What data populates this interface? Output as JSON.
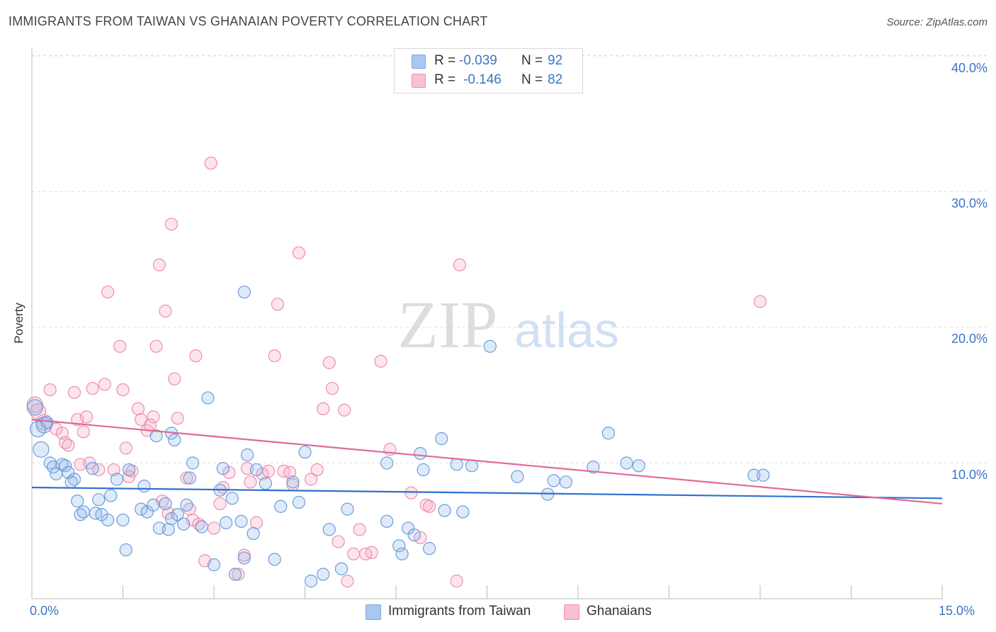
{
  "title": "IMMIGRANTS FROM TAIWAN VS GHANAIAN POVERTY CORRELATION CHART",
  "source": "Source: ZipAtlas.com",
  "watermark": {
    "zip": "ZIP",
    "atlas": "atlas"
  },
  "legend_top": {
    "rows": [
      {
        "r_label": "R =",
        "r_value": "-0.039",
        "n_label": "N =",
        "n_value": "92",
        "color": "#a8c8f0",
        "border": "#7aa7df"
      },
      {
        "r_label": "R =",
        "r_value": "-0.146",
        "n_label": "N =",
        "n_value": "82",
        "color": "#f8c0d2",
        "border": "#ec92b0"
      }
    ]
  },
  "legend_bottom": [
    {
      "label": "Immigrants from Taiwan",
      "color": "#a8c8f0",
      "border": "#7aa7df"
    },
    {
      "label": "Ghanaians",
      "color": "#f8c0d2",
      "border": "#ec92b0"
    }
  ],
  "colors": {
    "blue_fill": "rgba(140,180,235,0.28)",
    "blue_stroke": "#6b9ddb",
    "blue_line": "#2e6fd1",
    "pink_fill": "rgba(245,160,190,0.28)",
    "pink_stroke": "#ec8fb0",
    "pink_line": "#e06a96",
    "tick_text": "#3a75c4",
    "grid": "#e2e2e2"
  },
  "chart_data": {
    "type": "scatter",
    "title": "IMMIGRANTS FROM TAIWAN VS GHANAIAN POVERTY CORRELATION CHART",
    "xlabel": "",
    "ylabel": "Poverty",
    "xlim": [
      0,
      15
    ],
    "ylim": [
      0,
      40
    ],
    "x_tick_labels": [
      "0.0%",
      "15.0%"
    ],
    "y_ticks": [
      10,
      20,
      30,
      40
    ],
    "y_tick_labels": [
      "10.0%",
      "20.0%",
      "30.0%",
      "40.0%"
    ],
    "grid": true,
    "legend_position": "top-center",
    "series": [
      {
        "name": "Immigrants from Taiwan",
        "R": -0.039,
        "N": 92,
        "trend": {
          "x": [
            0,
            15
          ],
          "y": [
            8.2,
            7.4
          ]
        },
        "points": [
          [
            0.1,
            12.5
          ],
          [
            0.15,
            11.0
          ],
          [
            0.2,
            12.8
          ],
          [
            0.25,
            13.0
          ],
          [
            0.3,
            10.0
          ],
          [
            0.35,
            9.7
          ],
          [
            0.4,
            9.2
          ],
          [
            0.5,
            9.9
          ],
          [
            0.55,
            9.8
          ],
          [
            0.6,
            9.3
          ],
          [
            0.7,
            8.8
          ],
          [
            0.75,
            7.2
          ],
          [
            0.8,
            6.2
          ],
          [
            0.85,
            6.4
          ],
          [
            1.0,
            9.6
          ],
          [
            1.05,
            6.3
          ],
          [
            1.1,
            7.3
          ],
          [
            1.15,
            6.2
          ],
          [
            1.3,
            7.6
          ],
          [
            1.4,
            8.8
          ],
          [
            1.5,
            5.8
          ],
          [
            1.55,
            3.6
          ],
          [
            1.6,
            9.5
          ],
          [
            1.8,
            6.6
          ],
          [
            1.85,
            8.3
          ],
          [
            1.9,
            6.4
          ],
          [
            2.0,
            6.9
          ],
          [
            2.05,
            12.0
          ],
          [
            2.1,
            5.2
          ],
          [
            2.2,
            7.0
          ],
          [
            2.3,
            5.9
          ],
          [
            2.3,
            12.2
          ],
          [
            2.35,
            11.7
          ],
          [
            2.4,
            6.2
          ],
          [
            2.5,
            5.5
          ],
          [
            2.55,
            6.9
          ],
          [
            2.6,
            8.9
          ],
          [
            2.65,
            10.0
          ],
          [
            2.8,
            5.3
          ],
          [
            2.9,
            14.8
          ],
          [
            3.0,
            2.5
          ],
          [
            3.1,
            8.0
          ],
          [
            3.15,
            9.6
          ],
          [
            3.2,
            5.6
          ],
          [
            3.3,
            7.4
          ],
          [
            3.35,
            1.8
          ],
          [
            3.45,
            5.7
          ],
          [
            3.5,
            3.0
          ],
          [
            3.55,
            10.6
          ],
          [
            3.65,
            4.8
          ],
          [
            3.7,
            9.5
          ],
          [
            3.85,
            8.5
          ],
          [
            4.0,
            2.9
          ],
          [
            4.1,
            6.8
          ],
          [
            4.3,
            8.6
          ],
          [
            4.4,
            7.1
          ],
          [
            4.5,
            10.8
          ],
          [
            4.6,
            1.3
          ],
          [
            4.8,
            1.8
          ],
          [
            4.9,
            5.1
          ],
          [
            5.1,
            2.2
          ],
          [
            5.2,
            6.6
          ],
          [
            5.85,
            10.0
          ],
          [
            5.85,
            5.7
          ],
          [
            6.05,
            3.9
          ],
          [
            6.1,
            3.3
          ],
          [
            6.2,
            5.2
          ],
          [
            6.3,
            4.7
          ],
          [
            6.4,
            10.7
          ],
          [
            6.45,
            9.5
          ],
          [
            6.55,
            3.7
          ],
          [
            6.75,
            11.8
          ],
          [
            6.8,
            6.5
          ],
          [
            7.0,
            9.9
          ],
          [
            7.1,
            6.4
          ],
          [
            7.25,
            9.8
          ],
          [
            7.55,
            18.6
          ],
          [
            8.0,
            9.0
          ],
          [
            8.5,
            7.7
          ],
          [
            8.6,
            8.7
          ],
          [
            8.8,
            8.6
          ],
          [
            9.25,
            9.7
          ],
          [
            9.5,
            12.2
          ],
          [
            9.8,
            10.0
          ],
          [
            10.0,
            9.8
          ],
          [
            11.9,
            9.1
          ],
          [
            12.05,
            9.1
          ],
          [
            3.5,
            22.6
          ],
          [
            0.05,
            14.1
          ],
          [
            1.25,
            5.8
          ],
          [
            0.65,
            8.6
          ],
          [
            2.25,
            5.1
          ]
        ]
      },
      {
        "name": "Ghanaians",
        "R": -0.146,
        "N": 82,
        "trend": {
          "x": [
            0,
            15
          ],
          "y": [
            13.2,
            7.0
          ]
        },
        "points": [
          [
            0.05,
            14.3
          ],
          [
            0.2,
            13.0
          ],
          [
            0.3,
            15.4
          ],
          [
            0.4,
            12.5
          ],
          [
            0.5,
            12.2
          ],
          [
            0.55,
            11.5
          ],
          [
            0.6,
            11.3
          ],
          [
            0.7,
            15.2
          ],
          [
            0.75,
            13.2
          ],
          [
            0.8,
            9.9
          ],
          [
            0.85,
            12.3
          ],
          [
            0.9,
            13.4
          ],
          [
            1.0,
            15.5
          ],
          [
            1.1,
            9.5
          ],
          [
            1.2,
            15.8
          ],
          [
            1.25,
            22.6
          ],
          [
            1.35,
            9.5
          ],
          [
            1.45,
            18.6
          ],
          [
            1.5,
            15.4
          ],
          [
            1.55,
            11.1
          ],
          [
            1.65,
            9.4
          ],
          [
            1.75,
            14.0
          ],
          [
            1.8,
            13.2
          ],
          [
            1.9,
            12.4
          ],
          [
            2.0,
            13.4
          ],
          [
            2.05,
            18.6
          ],
          [
            2.1,
            24.6
          ],
          [
            2.15,
            7.2
          ],
          [
            2.2,
            21.2
          ],
          [
            2.25,
            6.3
          ],
          [
            2.3,
            27.6
          ],
          [
            2.35,
            16.2
          ],
          [
            2.4,
            13.3
          ],
          [
            2.55,
            8.9
          ],
          [
            2.6,
            6.6
          ],
          [
            2.7,
            17.9
          ],
          [
            2.75,
            5.5
          ],
          [
            2.85,
            2.8
          ],
          [
            2.95,
            32.1
          ],
          [
            3.0,
            5.2
          ],
          [
            3.1,
            7.0
          ],
          [
            3.15,
            8.2
          ],
          [
            3.25,
            9.3
          ],
          [
            3.4,
            1.8
          ],
          [
            3.5,
            3.2
          ],
          [
            3.6,
            8.6
          ],
          [
            3.7,
            5.6
          ],
          [
            3.8,
            9.2
          ],
          [
            3.9,
            9.4
          ],
          [
            4.0,
            17.9
          ],
          [
            4.05,
            21.7
          ],
          [
            4.15,
            9.4
          ],
          [
            4.3,
            8.4
          ],
          [
            4.4,
            25.5
          ],
          [
            4.6,
            8.8
          ],
          [
            4.7,
            9.5
          ],
          [
            4.8,
            14.0
          ],
          [
            4.9,
            17.4
          ],
          [
            4.95,
            15.5
          ],
          [
            5.05,
            4.2
          ],
          [
            5.15,
            13.9
          ],
          [
            5.2,
            1.3
          ],
          [
            5.3,
            3.3
          ],
          [
            5.4,
            5.1
          ],
          [
            5.5,
            3.3
          ],
          [
            5.6,
            3.4
          ],
          [
            5.75,
            17.5
          ],
          [
            5.9,
            11.0
          ],
          [
            6.25,
            7.8
          ],
          [
            6.4,
            4.5
          ],
          [
            6.5,
            6.9
          ],
          [
            6.55,
            6.8
          ],
          [
            7.0,
            1.3
          ],
          [
            7.05,
            24.6
          ],
          [
            12.0,
            21.9
          ],
          [
            0.1,
            13.8
          ],
          [
            0.95,
            10.0
          ],
          [
            1.6,
            9.0
          ],
          [
            2.65,
            5.8
          ],
          [
            4.25,
            9.3
          ],
          [
            3.55,
            9.6
          ],
          [
            1.95,
            12.8
          ]
        ]
      }
    ]
  }
}
